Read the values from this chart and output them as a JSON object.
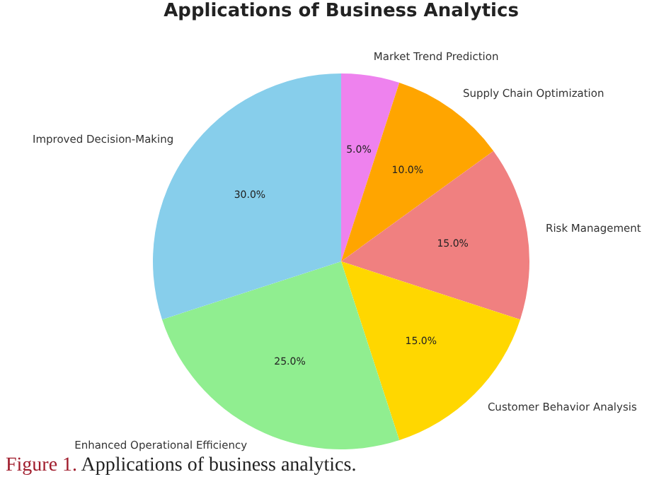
{
  "chart_data": {
    "type": "pie",
    "title": "Applications of Business Analytics",
    "categories": [
      "Market Trend Prediction",
      "Supply Chain Optimization",
      "Risk Management",
      "Customer Behavior Analysis",
      "Enhanced Operational Efficiency",
      "Improved Decision-Making"
    ],
    "values": [
      5,
      10,
      15,
      15,
      25,
      30
    ],
    "colors": [
      "#ee82ee",
      "#ffa500",
      "#f08080",
      "#ffd700",
      "#90ee90",
      "#87ceeb"
    ],
    "value_labels": [
      "5.0%",
      "10.0%",
      "15.0%",
      "15.0%",
      "25.0%",
      "30.0%"
    ],
    "annotations": [
      "Figure 1. Applications of business analytics."
    ]
  }
}
